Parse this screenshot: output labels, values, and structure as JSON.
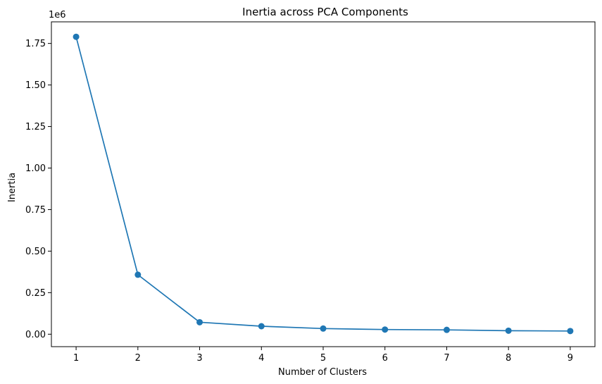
{
  "chart_data": {
    "type": "line",
    "title": "Inertia across PCA Components",
    "xlabel": "Number of Clusters",
    "ylabel": "Inertia",
    "y_offset_label": "1e6",
    "x": [
      1,
      2,
      3,
      4,
      5,
      6,
      7,
      8,
      9
    ],
    "series": [
      {
        "values": [
          1.79,
          0.358,
          0.072,
          0.048,
          0.034,
          0.028,
          0.026,
          0.021,
          0.019
        ],
        "color": "#1f77b4"
      }
    ],
    "xlim": [
      0.6,
      9.4
    ],
    "ylim": [
      -0.075,
      1.88
    ],
    "x_ticks": [
      1,
      2,
      3,
      4,
      5,
      6,
      7,
      8,
      9
    ],
    "x_tick_labels": [
      "1",
      "2",
      "3",
      "4",
      "5",
      "6",
      "7",
      "8",
      "9"
    ],
    "y_ticks": [
      0,
      0.25,
      0.5,
      0.75,
      1.0,
      1.25,
      1.5,
      1.75
    ],
    "y_tick_labels": [
      "0.00",
      "0.25",
      "0.50",
      "0.75",
      "1.00",
      "1.25",
      "1.50",
      "1.75"
    ],
    "grid": false,
    "markers": "circle"
  }
}
